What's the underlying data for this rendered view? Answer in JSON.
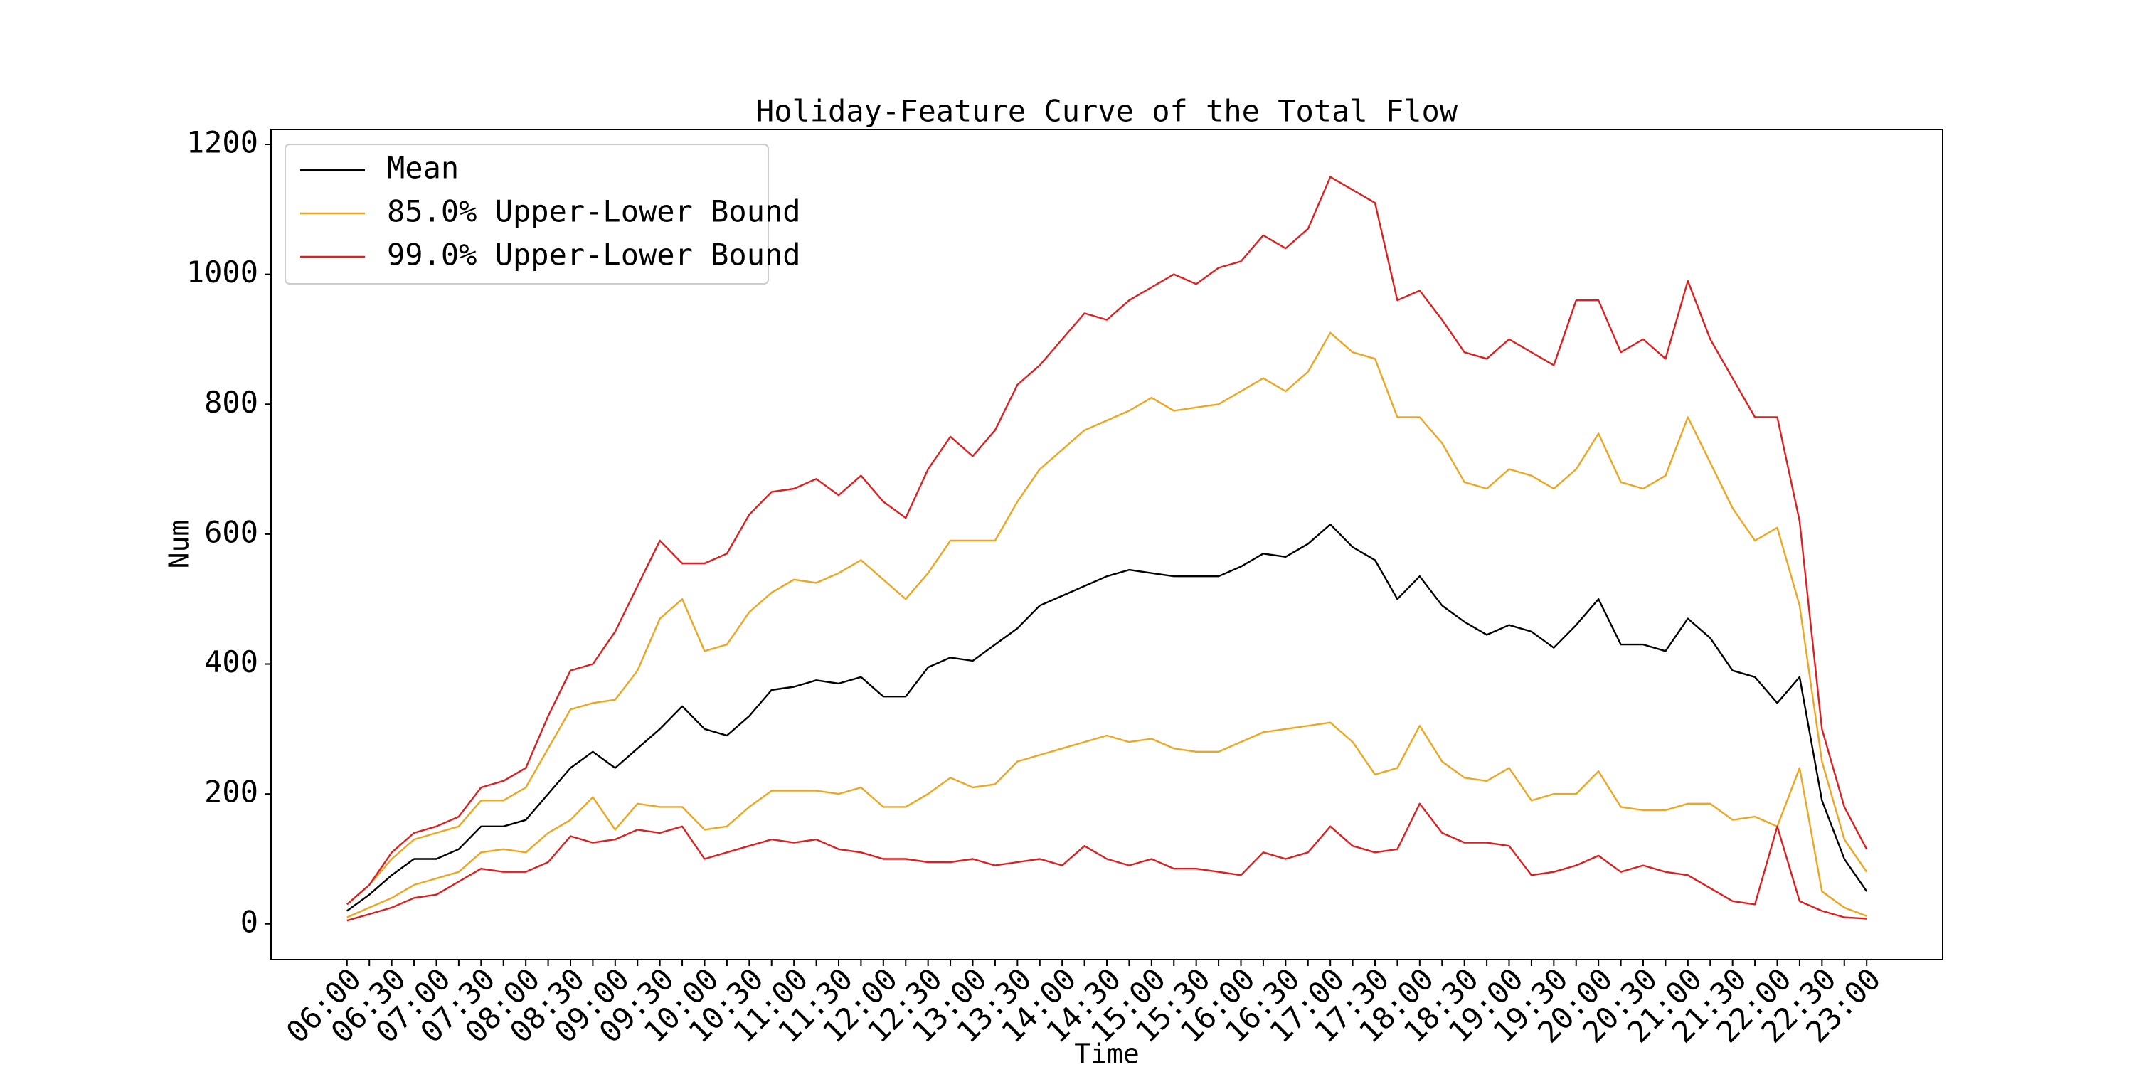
{
  "chart_data": {
    "type": "line",
    "title": "Holiday-Feature Curve of the Total Flow",
    "x_label": "Time",
    "y_label": "Num",
    "categories": [
      "06:00",
      null,
      "06:30",
      null,
      "07:00",
      null,
      "07:30",
      null,
      "08:00",
      null,
      "08:30",
      null,
      "09:00",
      null,
      "09:30",
      null,
      "10:00",
      null,
      "10:30",
      null,
      "11:00",
      null,
      "11:30",
      null,
      "12:00",
      null,
      "12:30",
      null,
      "13:00",
      null,
      "13:30",
      null,
      "14:00",
      null,
      "14:30",
      null,
      "15:00",
      null,
      "15:30",
      null,
      "16:00",
      null,
      "16:30",
      null,
      "17:00",
      null,
      "17:30",
      null,
      "18:00",
      null,
      "18:30",
      null,
      "19:00",
      null,
      "19:30",
      null,
      "20:00",
      null,
      "20:30",
      null,
      "21:00",
      null,
      "21:30",
      null,
      "22:00",
      null,
      "22:30",
      null,
      "23:00"
    ],
    "ylim": [
      -55,
      1223
    ],
    "yticks": [
      0,
      200,
      400,
      600,
      800,
      1000,
      1200
    ],
    "legend": "upper left",
    "series": [
      {
        "name": "Mean",
        "color": "#000000",
        "values": [
          20,
          45,
          75,
          100,
          100,
          115,
          150,
          150,
          160,
          200,
          240,
          265,
          240,
          270,
          300,
          335,
          300,
          290,
          320,
          360,
          365,
          375,
          370,
          380,
          350,
          350,
          395,
          410,
          405,
          430,
          455,
          490,
          505,
          520,
          535,
          545,
          540,
          535,
          535,
          535,
          550,
          570,
          565,
          585,
          615,
          580,
          560,
          500,
          535,
          490,
          465,
          445,
          460,
          450,
          425,
          460,
          500,
          430,
          430,
          420,
          470,
          440,
          390,
          380,
          340,
          380,
          190,
          100,
          50
        ]
      },
      {
        "name": "85.0% Upper-Lower Bound",
        "color": "#eea520",
        "upper": [
          30,
          60,
          100,
          130,
          140,
          150,
          190,
          190,
          210,
          270,
          330,
          340,
          345,
          390,
          470,
          500,
          420,
          430,
          480,
          510,
          530,
          525,
          540,
          560,
          530,
          500,
          540,
          590,
          590,
          590,
          650,
          700,
          730,
          760,
          775,
          790,
          810,
          790,
          795,
          800,
          820,
          840,
          820,
          850,
          910,
          880,
          870,
          780,
          780,
          740,
          680,
          670,
          700,
          690,
          670,
          700,
          755,
          680,
          670,
          690,
          780,
          710,
          640,
          590,
          610,
          490,
          250,
          130,
          80
        ],
        "lower": [
          10,
          25,
          40,
          60,
          70,
          80,
          110,
          115,
          110,
          140,
          160,
          195,
          145,
          185,
          180,
          180,
          145,
          150,
          180,
          205,
          205,
          205,
          200,
          210,
          180,
          180,
          200,
          225,
          210,
          215,
          250,
          260,
          270,
          280,
          290,
          280,
          285,
          270,
          265,
          265,
          280,
          295,
          300,
          305,
          310,
          280,
          230,
          240,
          305,
          250,
          225,
          220,
          240,
          190,
          200,
          200,
          235,
          180,
          175,
          175,
          185,
          185,
          160,
          165,
          150,
          240,
          50,
          25,
          12
        ]
      },
      {
        "name": "99.0% Upper-Lower Bound",
        "color": "#dc1f1f",
        "upper": [
          30,
          60,
          110,
          140,
          150,
          165,
          210,
          220,
          240,
          320,
          390,
          400,
          450,
          520,
          590,
          555,
          555,
          570,
          630,
          665,
          670,
          685,
          660,
          690,
          650,
          625,
          700,
          750,
          720,
          760,
          830,
          860,
          900,
          940,
          930,
          960,
          980,
          1000,
          985,
          1010,
          1020,
          1060,
          1040,
          1070,
          1150,
          1130,
          1110,
          960,
          975,
          930,
          880,
          870,
          900,
          880,
          860,
          960,
          960,
          880,
          900,
          870,
          990,
          900,
          840,
          780,
          780,
          620,
          300,
          180,
          115
        ],
        "lower": [
          5,
          15,
          25,
          40,
          45,
          65,
          85,
          80,
          80,
          95,
          135,
          125,
          130,
          145,
          140,
          150,
          100,
          110,
          120,
          130,
          125,
          130,
          115,
          110,
          100,
          100,
          95,
          95,
          100,
          90,
          95,
          100,
          90,
          120,
          100,
          90,
          100,
          85,
          85,
          80,
          75,
          110,
          100,
          110,
          150,
          120,
          110,
          115,
          185,
          140,
          125,
          125,
          120,
          75,
          80,
          90,
          105,
          80,
          90,
          80,
          75,
          55,
          35,
          30,
          150,
          35,
          20,
          10,
          8
        ]
      }
    ]
  }
}
